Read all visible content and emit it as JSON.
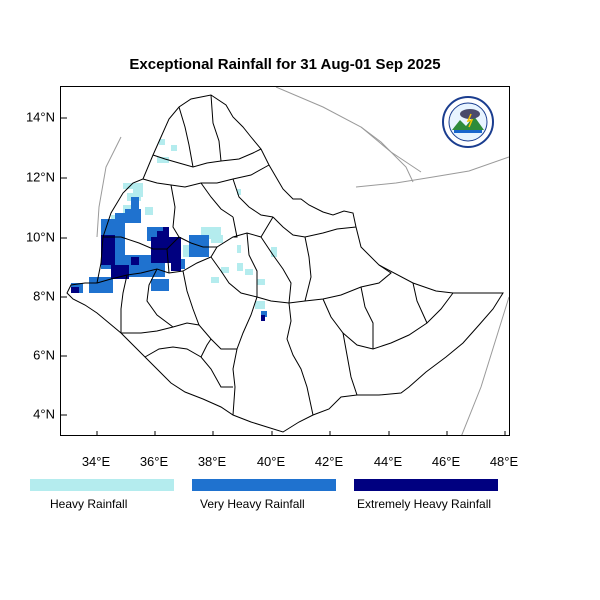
{
  "title": "Exceptional Rainfall for 31 Aug-01 Sep 2025",
  "lat_labels": [
    "14°N",
    "12°N",
    "10°N",
    "8°N",
    "6°N",
    "4°N"
  ],
  "lon_labels": [
    "34°E",
    "36°E",
    "38°E",
    "40°E",
    "42°E",
    "44°E",
    "46°E",
    "48°E"
  ],
  "legend": [
    {
      "label": "Heavy Rainfall",
      "color": "#b4ecee"
    },
    {
      "label": "Very Heavy Rainfall",
      "color": "#1f72cf"
    },
    {
      "label": "Extremely Heavy Rainfall",
      "color": "#000080"
    }
  ],
  "map": {
    "extent": {
      "lon_min": 32.8,
      "lon_max": 48.2,
      "lat_min": 3.1,
      "lat_max": 15.1
    },
    "country_border_color": "#000000",
    "neighbor_border_color": "#999999"
  },
  "logo": {
    "text": "Ethiopian Meteorology Institute",
    "icon": "meteorology-institute-logo"
  }
}
